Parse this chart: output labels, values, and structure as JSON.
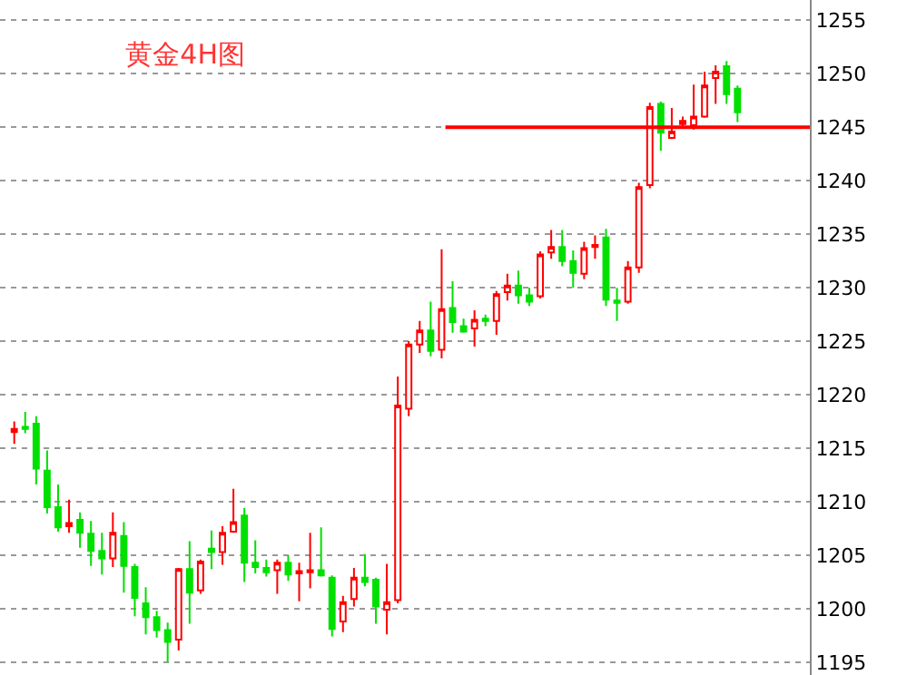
{
  "chart_data": {
    "type": "candlestick",
    "title": "黄金4H图",
    "categories": [
      null,
      null,
      null,
      null,
      null,
      null,
      null,
      null,
      null,
      null,
      null,
      null,
      null,
      null,
      null,
      null,
      null,
      null,
      null,
      null,
      null,
      null,
      null,
      null,
      null,
      null,
      null,
      null,
      null,
      null,
      null,
      null,
      null,
      null,
      null,
      null,
      null,
      null,
      null,
      null,
      null,
      null,
      null,
      null,
      null,
      null,
      null,
      null,
      null,
      null,
      null,
      null,
      null,
      null,
      null,
      null,
      null,
      null,
      null,
      null,
      null,
      null,
      null,
      null,
      null,
      null,
      null
    ],
    "ohlc": [
      [
        1216.5,
        1217.5,
        1215.4,
        1216.8
      ],
      [
        1217,
        1218.4,
        1216.4,
        1216.8
      ],
      [
        1217.3,
        1218,
        1211.6,
        1213.1
      ],
      [
        1212.9,
        1214.8,
        1208.9,
        1209.5
      ],
      [
        1209.5,
        1211.6,
        1207.2,
        1207.6
      ],
      [
        1207.7,
        1210.2,
        1207.1,
        1208.0
      ],
      [
        1208.3,
        1209,
        1205.7,
        1207.1
      ],
      [
        1207,
        1208.2,
        1204.0,
        1205.4
      ],
      [
        1205.4,
        1207.1,
        1203.2,
        1204.7
      ],
      [
        1204.7,
        1209.0,
        1203.9,
        1207.1
      ],
      [
        1206.8,
        1208.1,
        1201.5,
        1204.0
      ],
      [
        1203.9,
        1204.2,
        1199.3,
        1201.0
      ],
      [
        1200.5,
        1202.0,
        1197.6,
        1199.2
      ],
      [
        1199.2,
        1199.8,
        1197.3,
        1198.0
      ],
      [
        1198,
        1198.7,
        1195.0,
        1196.9
      ],
      [
        1197.1,
        1203.8,
        1196.1,
        1203.7
      ],
      [
        1203.7,
        1206.3,
        1198.6,
        1201.5
      ],
      [
        1201.7,
        1204.6,
        1201.4,
        1204.4
      ],
      [
        1205.6,
        1207.3,
        1203.7,
        1205.3
      ],
      [
        1205.3,
        1207.7,
        1204.1,
        1207.1
      ],
      [
        1207.2,
        1211.2,
        1207.1,
        1208.1
      ],
      [
        1208.7,
        1209.4,
        1202.5,
        1204.3
      ],
      [
        1204.3,
        1206.4,
        1203.3,
        1203.9
      ],
      [
        1203.8,
        1204.6,
        1203.0,
        1203.4
      ],
      [
        1203.6,
        1204.6,
        1201.4,
        1204.3
      ],
      [
        1204.3,
        1205.0,
        1202.6,
        1203.2
      ],
      [
        1203.3,
        1204.3,
        1200.7,
        1203.5
      ],
      [
        1203.4,
        1207.1,
        1201.9,
        1203.6
      ],
      [
        1203.6,
        1207.6,
        1203.0,
        1203.1
      ],
      [
        1202.9,
        1203.1,
        1197.4,
        1198.1
      ],
      [
        1198.8,
        1201.2,
        1197.8,
        1200.6
      ],
      [
        1200.9,
        1203.8,
        1200.2,
        1202.9
      ],
      [
        1202.9,
        1205.1,
        1202.1,
        1202.5
      ],
      [
        1202.7,
        1202.9,
        1198.6,
        1200.2
      ],
      [
        1199.9,
        1204.2,
        1197.6,
        1200.6
      ],
      [
        1200.8,
        1221.7,
        1200.5,
        1219.0
      ],
      [
        1218.7,
        1225.0,
        1218.0,
        1224.7
      ],
      [
        1224.7,
        1226.9,
        1223.9,
        1226.0
      ],
      [
        1226.0,
        1228.7,
        1223.6,
        1224.1
      ],
      [
        1224.2,
        1233.6,
        1223.4,
        1228.0
      ],
      [
        1228.1,
        1230.6,
        1225.8,
        1226.8
      ],
      [
        1226.4,
        1227.1,
        1225.8,
        1225.9
      ],
      [
        1226.2,
        1227.9,
        1224.5,
        1227.0
      ],
      [
        1227.1,
        1227.5,
        1226.4,
        1226.9
      ],
      [
        1226.9,
        1229.7,
        1225.6,
        1229.4
      ],
      [
        1229.6,
        1231.3,
        1228.8,
        1230.2
      ],
      [
        1230.2,
        1231.6,
        1228.5,
        1229.3
      ],
      [
        1229.3,
        1230.0,
        1228.3,
        1228.7
      ],
      [
        1229.2,
        1233.4,
        1229.0,
        1233.1
      ],
      [
        1233.3,
        1235.4,
        1232.7,
        1233.8
      ],
      [
        1233.8,
        1235.4,
        1232.0,
        1232.5
      ],
      [
        1232.5,
        1233.5,
        1230.0,
        1231.4
      ],
      [
        1231.3,
        1234.3,
        1230.8,
        1233.7
      ],
      [
        1233.8,
        1234.9,
        1232.7,
        1234.0
      ],
      [
        1234.7,
        1235.5,
        1228.3,
        1228.9
      ],
      [
        1228.8,
        1230.0,
        1226.9,
        1228.6
      ],
      [
        1228.7,
        1232.5,
        1228.5,
        1231.9
      ],
      [
        1231.9,
        1239.8,
        1231.4,
        1239.4
      ],
      [
        1239.6,
        1247.3,
        1239.3,
        1246.9
      ],
      [
        1247.2,
        1247.4,
        1242.8,
        1244.5
      ],
      [
        1244.0,
        1246.8,
        1243.9,
        1244.6
      ],
      [
        1245.3,
        1246.0,
        1245.0,
        1245.6
      ],
      [
        1245.2,
        1249.0,
        1244.8,
        1246.0
      ],
      [
        1246.0,
        1250.2,
        1245.9,
        1248.9
      ],
      [
        1249.6,
        1250.8,
        1247.2,
        1250.2
      ],
      [
        1250.7,
        1251.2,
        1247.2,
        1248.1
      ],
      [
        1248.6,
        1248.9,
        1245.5,
        1246.4
      ]
    ],
    "colors": [
      "#ff0000",
      "#00e000",
      "#00e000",
      "#00e000",
      "#00e000",
      "#ff0000",
      "#00e000",
      "#00e000",
      "#00e000",
      "#ff0000",
      "#00e000",
      "#00e000",
      "#00e000",
      "#00e000",
      "#00e000",
      "#ff0000",
      "#00e000",
      "#ff0000",
      "#00e000",
      "#ff0000",
      "#ff0000",
      "#00e000",
      "#00e000",
      "#00e000",
      "#ff0000",
      "#00e000",
      "#ff0000",
      "#ff0000",
      "#00e000",
      "#00e000",
      "#ff0000",
      "#ff0000",
      "#00e000",
      "#00e000",
      "#ff0000",
      "#ff0000",
      "#ff0000",
      "#ff0000",
      "#00e000",
      "#ff0000",
      "#00e000",
      "#00e000",
      "#ff0000",
      "#00e000",
      "#ff0000",
      "#ff0000",
      "#00e000",
      "#00e000",
      "#ff0000",
      "#ff0000",
      "#00e000",
      "#00e000",
      "#ff0000",
      "#ff0000",
      "#00e000",
      "#00e000",
      "#ff0000",
      "#ff0000",
      "#ff0000",
      "#00e000",
      "#ff0000",
      "#ff0000",
      "#ff0000",
      "#ff0000",
      "#ff0000",
      "#00e000",
      "#00e000"
    ],
    "ylim": [
      1193.8,
      1256.9
    ],
    "yticks": [
      1195,
      1200,
      1205,
      1210,
      1215,
      1220,
      1225,
      1230,
      1235,
      1240,
      1245,
      1250,
      1255
    ],
    "ref_lines": [
      {
        "axis": "y",
        "value": 1245,
        "color": "#ff0000"
      }
    ],
    "grid": "y",
    "tick_labels": "y"
  }
}
